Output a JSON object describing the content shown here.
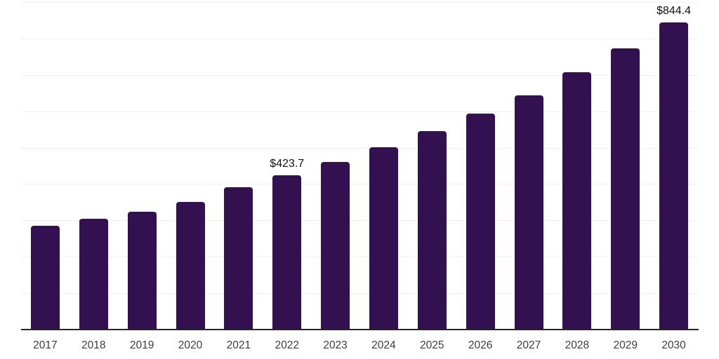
{
  "chart_data": {
    "type": "bar",
    "title": "",
    "xlabel": "",
    "ylabel": "",
    "categories": [
      "2017",
      "2018",
      "2019",
      "2020",
      "2021",
      "2022",
      "2023",
      "2024",
      "2025",
      "2026",
      "2027",
      "2028",
      "2029",
      "2030"
    ],
    "values": [
      285,
      304,
      324,
      351,
      391,
      423.7,
      461,
      502,
      545,
      593,
      644,
      707,
      773,
      844.4
    ],
    "data_labels": {
      "2022": "$423.7",
      "2030": "$844.4"
    },
    "ylim": [
      0,
      900
    ],
    "gridline_step": 100,
    "grid": true,
    "legend": false,
    "y_axis_tick_labels_visible": false,
    "colors": {
      "bar": "#331150",
      "gridline": "#f0f0f0",
      "axis_line": "#262626",
      "tick_label": "#3d3d3d",
      "data_label": "#111111",
      "background": "#ffffff"
    }
  }
}
